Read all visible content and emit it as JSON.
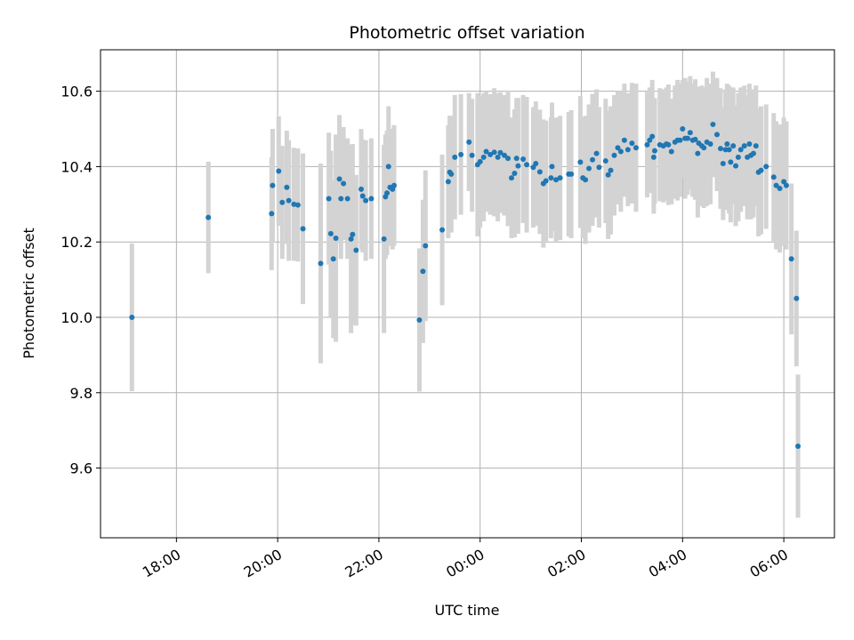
{
  "chart_data": {
    "type": "scatter",
    "title": "Photometric offset variation",
    "xlabel": "UTC time",
    "ylabel": "Photometric offset",
    "x_unit": "hours",
    "xlim": [
      -7.5,
      7.0
    ],
    "ylim": [
      9.415,
      10.71
    ],
    "grid": true,
    "marker_color": "#1f77b4",
    "errorbar_color": "#d3d3d3",
    "x_ticks": [
      {
        "value": -6,
        "label": "18:00"
      },
      {
        "value": -4,
        "label": "20:00"
      },
      {
        "value": -2,
        "label": "22:00"
      },
      {
        "value": 0,
        "label": "00:00"
      },
      {
        "value": 2,
        "label": "02:00"
      },
      {
        "value": 4,
        "label": "04:00"
      },
      {
        "value": 6,
        "label": "06:00"
      }
    ],
    "y_ticks": [
      {
        "value": 9.6,
        "label": "9.6"
      },
      {
        "value": 9.8,
        "label": "9.8"
      },
      {
        "value": 10.0,
        "label": "10.0"
      },
      {
        "value": 10.2,
        "label": "10.2"
      },
      {
        "value": 10.4,
        "label": "10.4"
      },
      {
        "value": 10.6,
        "label": "10.6"
      }
    ],
    "points": [
      [
        -6.88,
        10.0,
        0.196
      ],
      [
        -5.37,
        10.265,
        0.148
      ],
      [
        -4.12,
        10.275,
        0.15
      ],
      [
        -4.1,
        10.35,
        0.15
      ],
      [
        -3.98,
        10.388,
        0.145
      ],
      [
        -3.91,
        10.305,
        0.15
      ],
      [
        -3.82,
        10.345,
        0.15
      ],
      [
        -3.78,
        10.31,
        0.16
      ],
      [
        -3.68,
        10.3,
        0.15
      ],
      [
        -3.6,
        10.298,
        0.15
      ],
      [
        -3.5,
        10.235,
        0.2
      ],
      [
        -3.15,
        10.143,
        0.265
      ],
      [
        -2.99,
        10.315,
        0.175
      ],
      [
        -2.95,
        10.222,
        0.22
      ],
      [
        -2.9,
        10.155,
        0.21
      ],
      [
        -2.85,
        10.21,
        0.275
      ],
      [
        -2.78,
        10.367,
        0.17
      ],
      [
        -2.75,
        10.315,
        0.16
      ],
      [
        -2.7,
        10.355,
        0.15
      ],
      [
        -2.62,
        10.315,
        0.16
      ],
      [
        -2.55,
        10.208,
        0.25
      ],
      [
        -2.52,
        10.22,
        0.24
      ],
      [
        -2.45,
        10.178,
        0.2
      ],
      [
        -2.35,
        10.34,
        0.16
      ],
      [
        -2.32,
        10.322,
        0.15
      ],
      [
        -2.26,
        10.31,
        0.16
      ],
      [
        -2.15,
        10.315,
        0.16
      ],
      [
        -1.9,
        10.208,
        0.25
      ],
      [
        -1.87,
        10.32,
        0.165
      ],
      [
        -1.84,
        10.33,
        0.165
      ],
      [
        -1.81,
        10.4,
        0.16
      ],
      [
        -1.78,
        10.345,
        0.155
      ],
      [
        -1.73,
        10.34,
        0.16
      ],
      [
        -1.7,
        10.35,
        0.16
      ],
      [
        -1.2,
        9.993,
        0.19
      ],
      [
        -1.13,
        10.122,
        0.19
      ],
      [
        -1.08,
        10.19,
        0.2
      ],
      [
        -0.75,
        10.232,
        0.2
      ],
      [
        -0.63,
        10.36,
        0.15
      ],
      [
        -0.6,
        10.385,
        0.15
      ],
      [
        -0.57,
        10.38,
        0.155
      ],
      [
        -0.5,
        10.425,
        0.165
      ],
      [
        -0.38,
        10.432,
        0.16
      ],
      [
        -0.22,
        10.465,
        0.13
      ],
      [
        -0.16,
        10.43,
        0.15
      ],
      [
        -0.05,
        10.405,
        0.19
      ],
      [
        0.0,
        10.413,
        0.175
      ],
      [
        0.07,
        10.425,
        0.17
      ],
      [
        0.12,
        10.44,
        0.16
      ],
      [
        0.2,
        10.432,
        0.16
      ],
      [
        0.28,
        10.438,
        0.17
      ],
      [
        0.35,
        10.425,
        0.17
      ],
      [
        0.4,
        10.437,
        0.16
      ],
      [
        0.48,
        10.43,
        0.16
      ],
      [
        0.55,
        10.422,
        0.18
      ],
      [
        0.62,
        10.37,
        0.16
      ],
      [
        0.68,
        10.382,
        0.17
      ],
      [
        0.72,
        10.422,
        0.16
      ],
      [
        0.75,
        10.402,
        0.18
      ],
      [
        0.85,
        10.42,
        0.17
      ],
      [
        0.92,
        10.405,
        0.18
      ],
      [
        1.05,
        10.398,
        0.16
      ],
      [
        1.1,
        10.408,
        0.165
      ],
      [
        1.18,
        10.386,
        0.165
      ],
      [
        1.25,
        10.355,
        0.17
      ],
      [
        1.3,
        10.362,
        0.16
      ],
      [
        1.42,
        10.4,
        0.17
      ],
      [
        1.4,
        10.37,
        0.16
      ],
      [
        1.5,
        10.365,
        0.165
      ],
      [
        1.58,
        10.37,
        0.165
      ],
      [
        1.75,
        10.38,
        0.165
      ],
      [
        1.8,
        10.38,
        0.17
      ],
      [
        1.98,
        10.412,
        0.175
      ],
      [
        2.03,
        10.37,
        0.16
      ],
      [
        2.08,
        10.365,
        0.17
      ],
      [
        2.15,
        10.395,
        0.17
      ],
      [
        2.22,
        10.418,
        0.175
      ],
      [
        2.3,
        10.435,
        0.17
      ],
      [
        2.35,
        10.398,
        0.16
      ],
      [
        2.48,
        10.415,
        0.165
      ],
      [
        2.53,
        10.378,
        0.17
      ],
      [
        2.58,
        10.39,
        0.17
      ],
      [
        2.65,
        10.43,
        0.16
      ],
      [
        2.72,
        10.45,
        0.15
      ],
      [
        2.78,
        10.44,
        0.16
      ],
      [
        2.85,
        10.47,
        0.15
      ],
      [
        2.92,
        10.445,
        0.15
      ],
      [
        3.0,
        10.462,
        0.16
      ],
      [
        3.08,
        10.45,
        0.17
      ],
      [
        3.3,
        10.458,
        0.14
      ],
      [
        3.35,
        10.47,
        0.14
      ],
      [
        3.4,
        10.48,
        0.15
      ],
      [
        3.43,
        10.425,
        0.15
      ],
      [
        3.45,
        10.442,
        0.14
      ],
      [
        3.55,
        10.458,
        0.15
      ],
      [
        3.62,
        10.455,
        0.15
      ],
      [
        3.68,
        10.46,
        0.15
      ],
      [
        3.72,
        10.458,
        0.16
      ],
      [
        3.78,
        10.44,
        0.14
      ],
      [
        3.85,
        10.465,
        0.15
      ],
      [
        3.9,
        10.47,
        0.16
      ],
      [
        3.95,
        10.47,
        0.15
      ],
      [
        4.0,
        10.5,
        0.13
      ],
      [
        4.05,
        10.475,
        0.16
      ],
      [
        4.1,
        10.475,
        0.15
      ],
      [
        4.15,
        10.49,
        0.15
      ],
      [
        4.2,
        10.47,
        0.15
      ],
      [
        4.25,
        10.472,
        0.16
      ],
      [
        4.3,
        10.435,
        0.17
      ],
      [
        4.32,
        10.462,
        0.15
      ],
      [
        4.38,
        10.455,
        0.16
      ],
      [
        4.42,
        10.45,
        0.16
      ],
      [
        4.48,
        10.465,
        0.17
      ],
      [
        4.55,
        10.46,
        0.16
      ],
      [
        4.6,
        10.512,
        0.14
      ],
      [
        4.68,
        10.485,
        0.15
      ],
      [
        4.75,
        10.448,
        0.16
      ],
      [
        4.8,
        10.408,
        0.15
      ],
      [
        4.85,
        10.445,
        0.16
      ],
      [
        4.88,
        10.46,
        0.16
      ],
      [
        4.92,
        10.445,
        0.17
      ],
      [
        4.95,
        10.412,
        0.16
      ],
      [
        5.0,
        10.455,
        0.155
      ],
      [
        5.05,
        10.402,
        0.16
      ],
      [
        5.1,
        10.425,
        0.17
      ],
      [
        5.15,
        10.445,
        0.165
      ],
      [
        5.22,
        10.455,
        0.16
      ],
      [
        5.28,
        10.425,
        0.165
      ],
      [
        5.32,
        10.46,
        0.16
      ],
      [
        5.35,
        10.43,
        0.17
      ],
      [
        5.4,
        10.435,
        0.17
      ],
      [
        5.45,
        10.455,
        0.16
      ],
      [
        5.5,
        10.385,
        0.17
      ],
      [
        5.55,
        10.39,
        0.17
      ],
      [
        5.65,
        10.4,
        0.165
      ],
      [
        5.8,
        10.372,
        0.17
      ],
      [
        5.85,
        10.35,
        0.17
      ],
      [
        5.92,
        10.342,
        0.17
      ],
      [
        6.0,
        10.36,
        0.17
      ],
      [
        6.05,
        10.35,
        0.17
      ],
      [
        6.15,
        10.155,
        0.2
      ],
      [
        6.25,
        10.05,
        0.18
      ],
      [
        6.28,
        9.658,
        0.19
      ]
    ]
  }
}
